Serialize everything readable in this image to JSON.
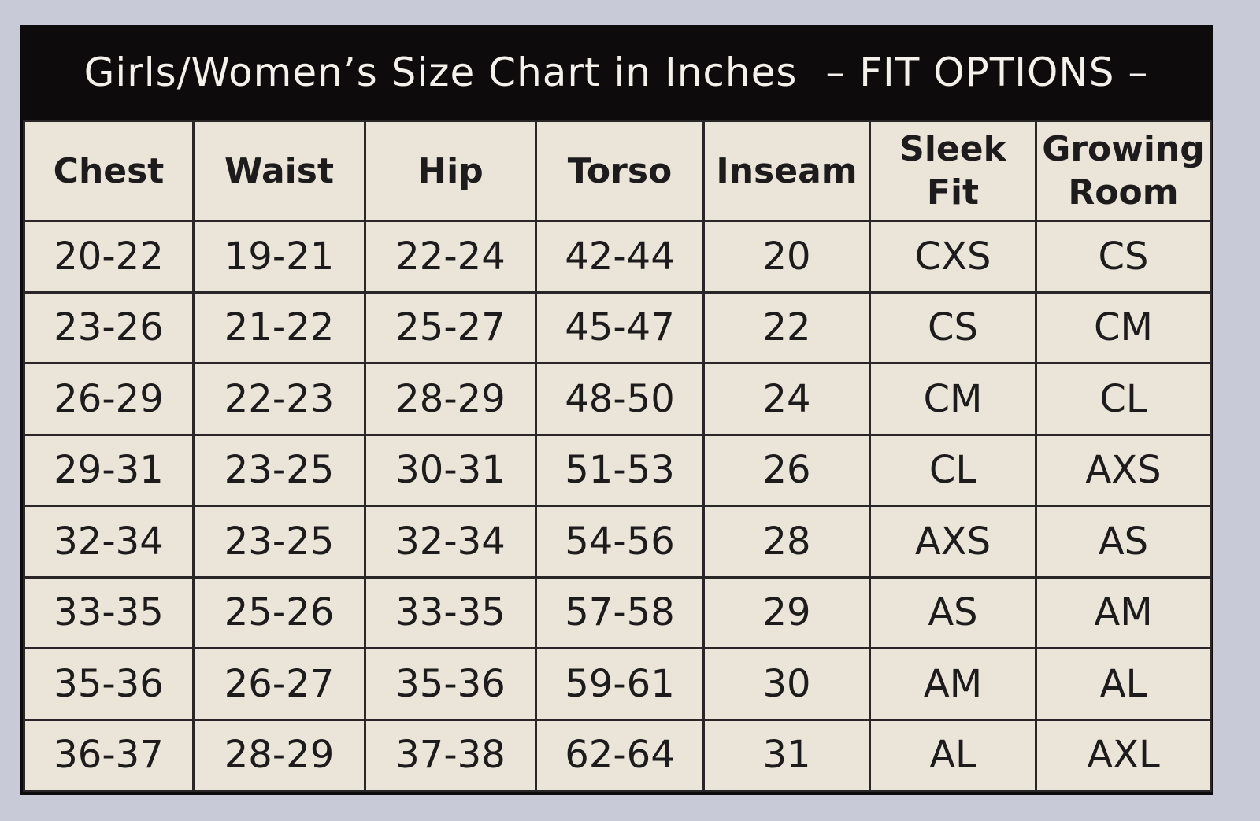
{
  "header": {
    "title": "Girls/Women’s Size Chart in Inches",
    "subtitle": "– FIT OPTIONS –"
  },
  "table": {
    "columns": [
      "Chest",
      "Waist",
      "Hip",
      "Torso",
      "Inseam",
      "Sleek Fit",
      "Growing Room"
    ],
    "rows": [
      [
        "20-22",
        "19-21",
        "22-24",
        "42-44",
        "20",
        "CXS",
        "CS"
      ],
      [
        "23-26",
        "21-22",
        "25-27",
        "45-47",
        "22",
        "CS",
        "CM"
      ],
      [
        "26-29",
        "22-23",
        "28-29",
        "48-50",
        "24",
        "CM",
        "CL"
      ],
      [
        "29-31",
        "23-25",
        "30-31",
        "51-53",
        "26",
        "CL",
        "AXS"
      ],
      [
        "32-34",
        "23-25",
        "32-34",
        "54-56",
        "28",
        "AXS",
        "AS"
      ],
      [
        "33-35",
        "25-26",
        "33-35",
        "57-58",
        "29",
        "AS",
        "AM"
      ],
      [
        "35-36",
        "26-27",
        "35-36",
        "59-61",
        "30",
        "AM",
        "AL"
      ],
      [
        "36-37",
        "28-29",
        "37-38",
        "62-64",
        "31",
        "AL",
        "AXL"
      ]
    ]
  }
}
